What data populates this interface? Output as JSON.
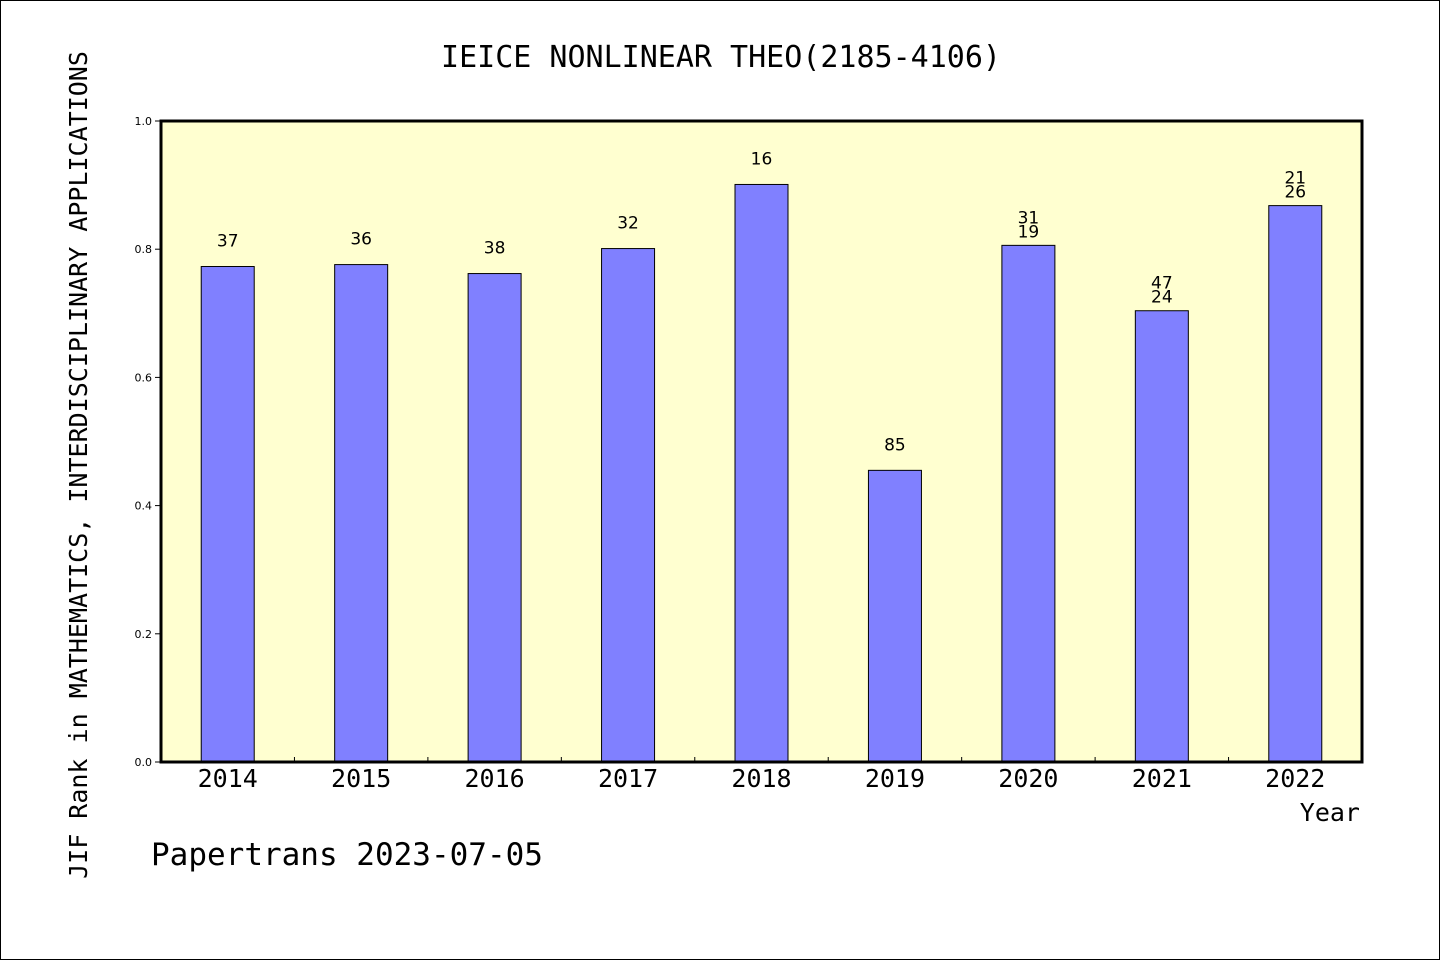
{
  "chart_data": {
    "type": "bar",
    "title": "IEICE NONLINEAR THEO(2185-4106)",
    "xlabel": "Year",
    "ylabel": "JIF Rank in MATHEMATICS,  INTERDISCIPLINARY APPLICATIONS",
    "categories": [
      "2014",
      "2015",
      "2016",
      "2017",
      "2018",
      "2019",
      "2020",
      "2021",
      "2022"
    ],
    "values": [
      0.773,
      0.776,
      0.762,
      0.801,
      0.901,
      0.455,
      0.806,
      0.704,
      0.868
    ],
    "bar_labels": [
      [
        "37"
      ],
      [
        "36"
      ],
      [
        "38"
      ],
      [
        "32"
      ],
      [
        "16"
      ],
      [
        "85"
      ],
      [
        "31",
        "19"
      ],
      [
        "47",
        "24"
      ],
      [
        "21",
        "26"
      ]
    ],
    "ylim": [
      0,
      1.0
    ],
    "yticks": [
      "0.0",
      "0.2",
      "0.4",
      "0.6",
      "0.8",
      "1.0"
    ],
    "grid": false,
    "colors": {
      "bar": "#8080ff",
      "plot_background": "#ffffd0",
      "axis": "#000000"
    }
  },
  "footer": "Papertrans 2023-07-05"
}
